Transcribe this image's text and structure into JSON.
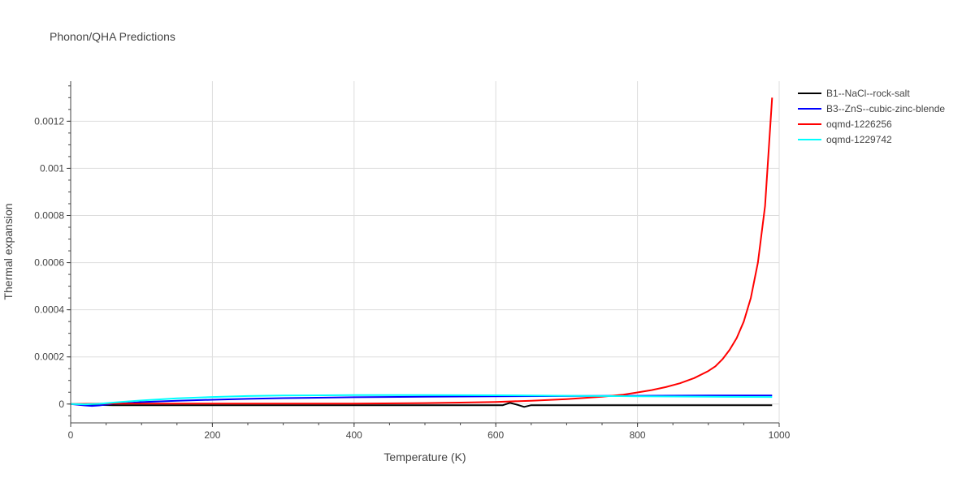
{
  "chart_data": {
    "type": "line",
    "title": "Phonon/QHA Predictions",
    "xlabel": "Temperature (K)",
    "ylabel": "Thermal expansion",
    "xlim": [
      0,
      1000
    ],
    "ylim": [
      -8e-05,
      0.00137
    ],
    "x_ticks": [
      0,
      200,
      400,
      600,
      800,
      1000
    ],
    "x_tick_labels": [
      "0",
      "200",
      "400",
      "600",
      "800",
      "1000"
    ],
    "y_ticks": [
      0,
      0.0002,
      0.0004,
      0.0006,
      0.0008,
      0.001,
      0.0012
    ],
    "y_tick_labels": [
      "0",
      "0.0002",
      "0.0004",
      "0.0006",
      "0.0008",
      "0.001",
      "0.0012"
    ],
    "grid": true,
    "legend_position": "top-right outside",
    "series": [
      {
        "name": "B1--NaCl--rock-salt",
        "color": "#000000",
        "x": [
          0,
          20,
          40,
          60,
          80,
          100,
          150,
          200,
          300,
          400,
          500,
          600,
          610,
          620,
          630,
          640,
          650,
          700,
          800,
          900,
          990
        ],
        "y": [
          0,
          -2e-06,
          -4e-06,
          -5e-06,
          -5e-06,
          -5e-06,
          -5e-06,
          -5e-06,
          -5e-06,
          -5e-06,
          -5e-06,
          -5e-06,
          -5e-06,
          5e-06,
          -3e-06,
          -1.2e-05,
          -5e-06,
          -5e-06,
          -5e-06,
          -5e-06,
          -5e-06
        ]
      },
      {
        "name": "B3--ZnS--cubic-zinc-blende",
        "color": "#0000ff",
        "x": [
          0,
          20,
          30,
          40,
          60,
          80,
          100,
          150,
          200,
          250,
          300,
          400,
          500,
          600,
          700,
          800,
          900,
          990
        ],
        "y": [
          0,
          -6e-06,
          -8e-06,
          -6e-06,
          1e-06,
          4e-06,
          8e-06,
          1.4e-05,
          1.8e-05,
          2.2e-05,
          2.5e-05,
          2.9e-05,
          3.1e-05,
          3.3e-05,
          3.4e-05,
          3.5e-05,
          3.6e-05,
          3.6e-05
        ]
      },
      {
        "name": "oqmd-1226256",
        "color": "#ff0000",
        "x": [
          0,
          50,
          100,
          200,
          300,
          400,
          500,
          550,
          600,
          650,
          700,
          750,
          780,
          800,
          820,
          840,
          860,
          880,
          900,
          910,
          920,
          930,
          940,
          950,
          960,
          970,
          980,
          990
        ],
        "y": [
          0,
          2e-06,
          2e-06,
          2e-06,
          2e-06,
          2e-06,
          4e-06,
          6e-06,
          9e-06,
          1.4e-05,
          2.1e-05,
          3.1e-05,
          4e-05,
          4.9e-05,
          5.9e-05,
          7.2e-05,
          8.8e-05,
          0.00011,
          0.00014,
          0.00016,
          0.00019,
          0.00023,
          0.00028,
          0.00035,
          0.00045,
          0.0006,
          0.00084,
          0.0013
        ]
      },
      {
        "name": "oqmd-1229742",
        "color": "#00ffff",
        "x": [
          0,
          20,
          40,
          60,
          80,
          100,
          150,
          200,
          250,
          300,
          400,
          500,
          600,
          700,
          800,
          900,
          990
        ],
        "y": [
          0,
          -1e-06,
          1e-06,
          6e-06,
          1.1e-05,
          1.5e-05,
          2.4e-05,
          3e-05,
          3.4e-05,
          3.6e-05,
          3.8e-05,
          3.8e-05,
          3.7e-05,
          3.5e-05,
          3.3e-05,
          3.1e-05,
          3e-05
        ]
      }
    ]
  }
}
